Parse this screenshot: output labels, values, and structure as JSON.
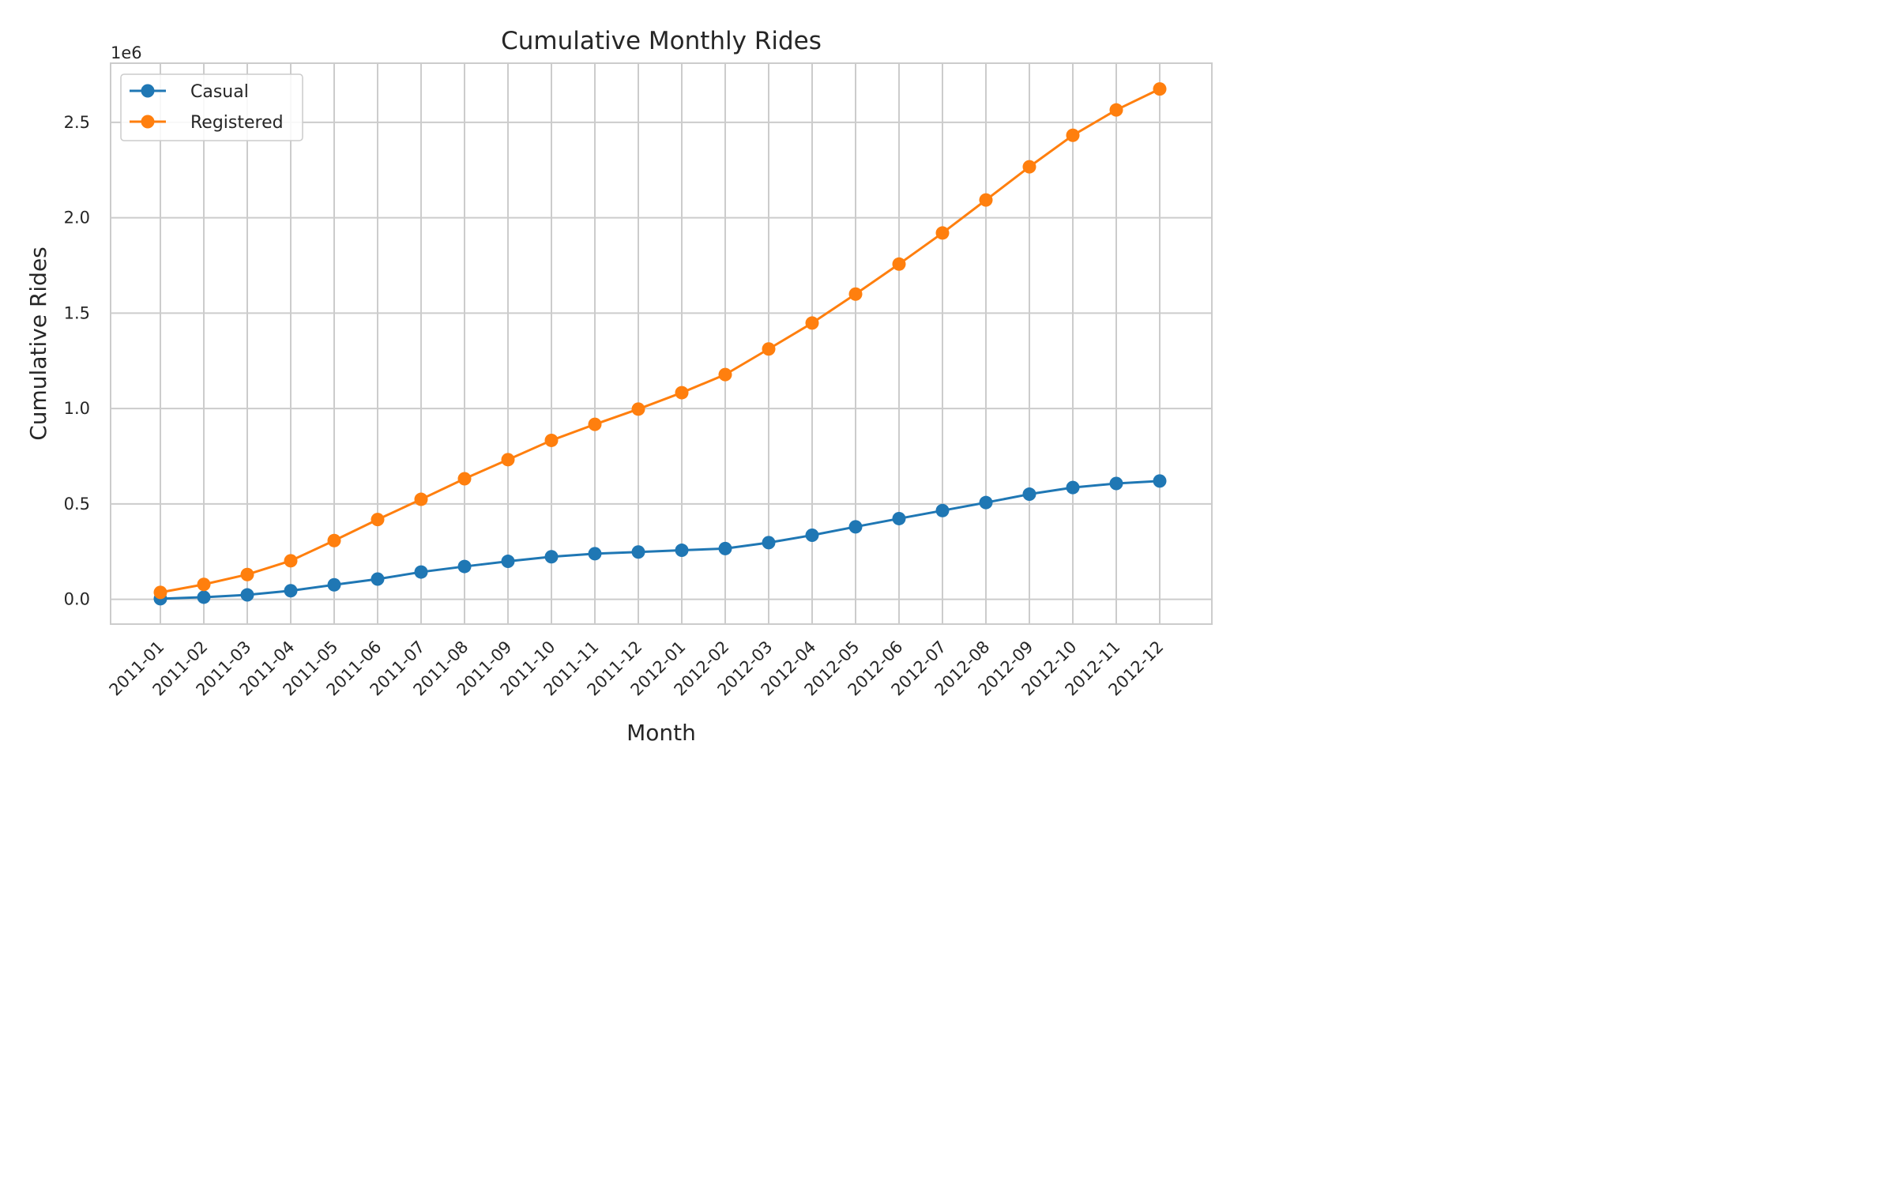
{
  "chart_data": {
    "type": "line",
    "title": "Cumulative Monthly Rides",
    "xlabel": "Month",
    "ylabel": "Cumulative Rides",
    "y_offset_label": "1e6",
    "categories": [
      "2011-01",
      "2011-02",
      "2011-03",
      "2011-04",
      "2011-05",
      "2011-06",
      "2011-07",
      "2011-08",
      "2011-09",
      "2011-10",
      "2011-11",
      "2011-12",
      "2012-01",
      "2012-02",
      "2012-03",
      "2012-04",
      "2012-05",
      "2012-06",
      "2012-07",
      "2012-08",
      "2012-09",
      "2012-10",
      "2012-11",
      "2012-12"
    ],
    "series": [
      {
        "name": "Casual",
        "color": "#1f77b4",
        "values": [
          3000,
          11000,
          23000,
          45000,
          76000,
          106000,
          143000,
          172000,
          199000,
          223000,
          239000,
          248000,
          257000,
          266000,
          297000,
          336000,
          380000,
          423000,
          465000,
          507000,
          551000,
          586000,
          607000,
          620000
        ]
      },
      {
        "name": "Registered",
        "color": "#ff7f0e",
        "values": [
          36000,
          78000,
          130000,
          202000,
          308000,
          418000,
          524000,
          632000,
          732000,
          833000,
          917000,
          997000,
          1083000,
          1178000,
          1312000,
          1448000,
          1600000,
          1757000,
          1920000,
          2093000,
          2267000,
          2432000,
          2565000,
          2675000
        ]
      }
    ],
    "ylim": [
      -130000,
      2810000
    ],
    "yticks": [
      0,
      500000,
      1000000,
      1500000,
      2000000,
      2500000
    ],
    "ytick_labels": [
      "0.0",
      "0.5",
      "1.0",
      "1.5",
      "2.0",
      "2.5"
    ],
    "grid": true,
    "legend_position": "top-left"
  }
}
